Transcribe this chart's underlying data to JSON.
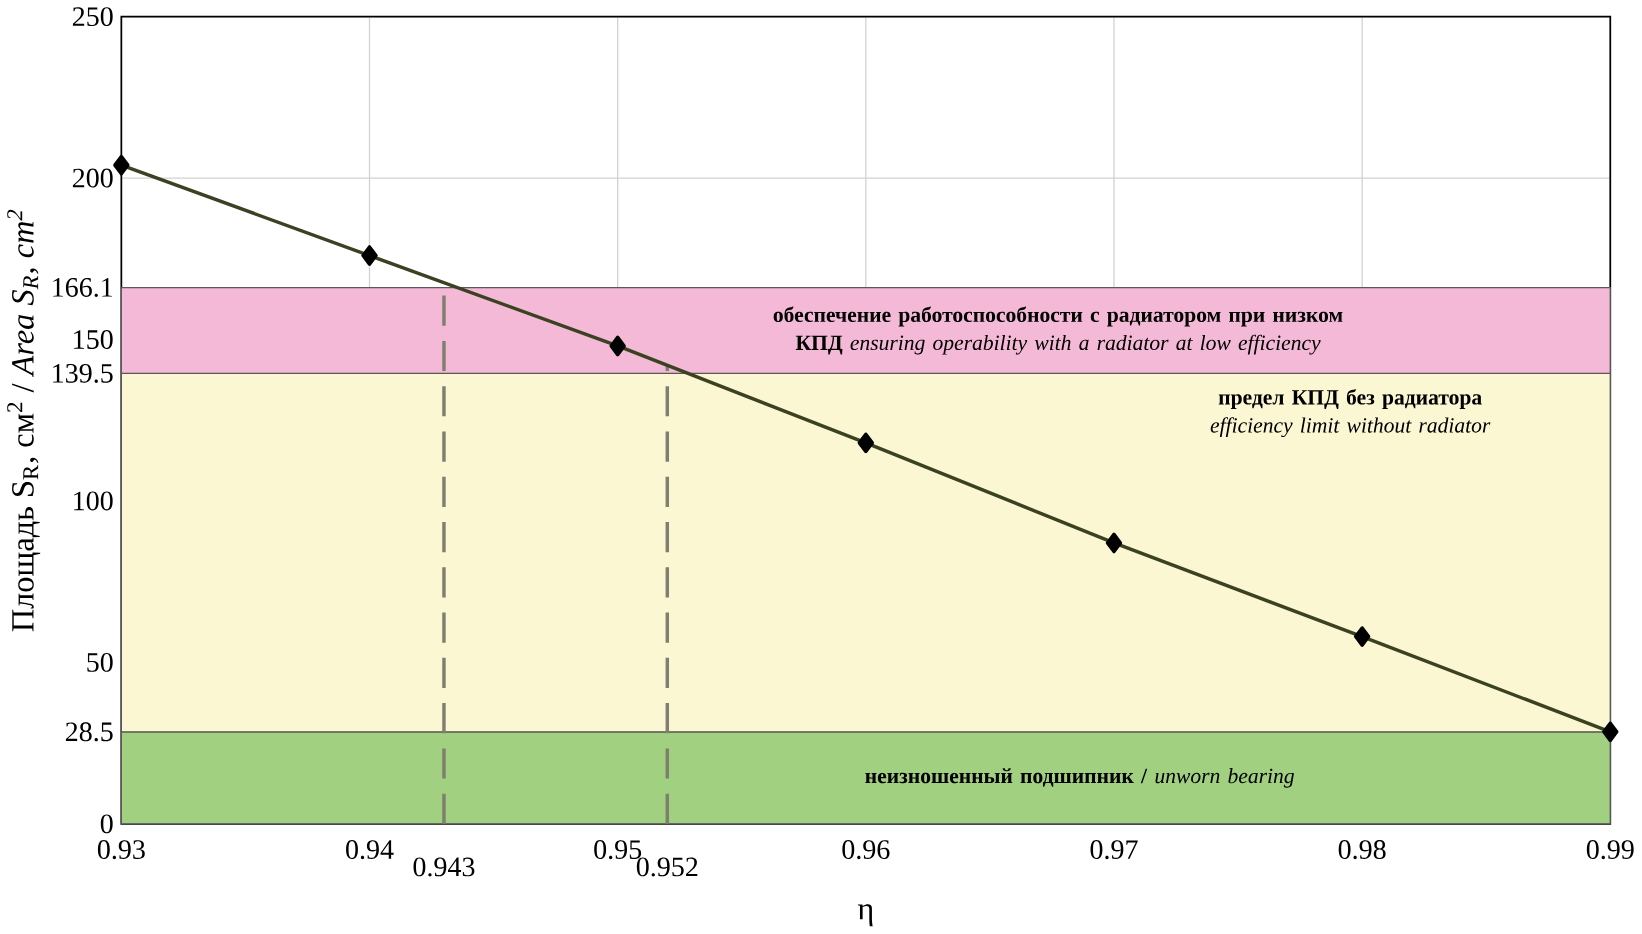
{
  "chart_data": {
    "type": "line",
    "xlabel": "η",
    "ylabel": "Площадь S$_{R}$, см$^{2}$ / *Area S$_{R}$, cm$^{2}$*",
    "x": [
      0.93,
      0.94,
      0.95,
      0.96,
      0.97,
      0.98,
      0.99
    ],
    "series": [
      {
        "color": "#3a4222",
        "values": [
          204,
          176,
          148,
          118,
          87,
          58,
          28.5
        ]
      }
    ],
    "marker": "diamond",
    "grid": true,
    "xlim": [
      0.93,
      0.99
    ],
    "xticks": [
      0.93,
      0.94,
      0.95,
      0.96,
      0.97,
      0.98,
      0.99
    ],
    "ylim": [
      0,
      250
    ],
    "yticks": [
      0,
      28.5,
      50,
      100,
      139.5,
      150,
      166.1,
      200,
      250
    ],
    "bands": [
      {
        "axis": "y",
        "from": 0,
        "to": 28.5,
        "color": "#a0d080",
        "label": "**неизношенный подшипник /** *unworn bearing*"
      },
      {
        "axis": "y",
        "from": 28.5,
        "to": 139.5,
        "color": "#fbf7d3",
        "label": "**предел КПД без радиатора** *efficiency limit without radiator*"
      },
      {
        "axis": "y",
        "from": 139.5,
        "to": 166.1,
        "color": "#f4b9d6",
        "label": "**обеспечение работоспособности с радиатором при низком КПД** *ensuring operability with a radiator at low efficiency*"
      }
    ],
    "ref_lines": [
      {
        "axis": "x",
        "value": 0.943,
        "label": "0.943",
        "color": "#7f7f70",
        "line_style": "dashed"
      },
      {
        "axis": "x",
        "value": 0.952,
        "label": "0.952",
        "color": "#7f7f70",
        "line_style": "dashed"
      }
    ]
  }
}
